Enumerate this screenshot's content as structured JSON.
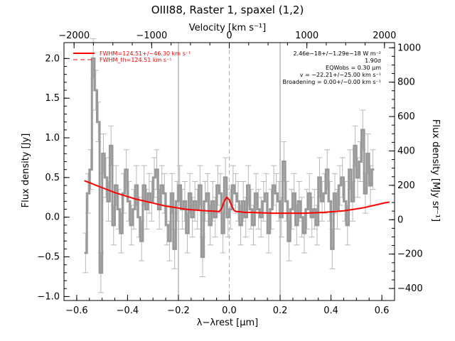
{
  "chart_data": {
    "type": "line",
    "title": "OIII88, Raster 1, spaxel (1,2)",
    "xlabel": "λ−λrest [μm]",
    "ylabel": "Flux density [Jy]",
    "x2label": "Velocity [km s⁻¹]",
    "y2label": "Flux density [MJy sr⁻¹]",
    "xlim": [
      -0.65,
      0.65
    ],
    "ylim": [
      -1.05,
      2.2
    ],
    "x2lim": [
      -2130,
      2130
    ],
    "y2lim": [
      -470,
      1030
    ],
    "xticks": [
      "−0.6",
      "−0.4",
      "−0.2",
      "0.0",
      "0.2",
      "0.4",
      "0.6"
    ],
    "yticks": [
      "−1.0",
      "−0.5",
      "0.0",
      "0.5",
      "1.0",
      "1.5",
      "2.0"
    ],
    "x2ticks": [
      "−2000",
      "−1000",
      "0",
      "1000",
      "2000"
    ],
    "y2ticks": [
      "−400",
      "−200",
      "0",
      "200",
      "400",
      "600",
      "800",
      "1000"
    ],
    "vlines": [
      -0.2,
      0.2
    ],
    "center_line": 0.0,
    "grid": false,
    "legend": {
      "position": "top-left",
      "entries": [
        {
          "label": "FWHM=124.51+/−46.30 km s⁻¹",
          "style": "solid",
          "color": "#ff0000"
        },
        {
          "label": "FWHM_th=124.51 km s⁻¹",
          "style": "dashed",
          "color": "#ff0000"
        }
      ]
    },
    "annotations": [
      "2.46e−18+/−1.29e−18 W m⁻²",
      "1.90σ",
      "EQWobs = 0.30 μm",
      "v = −22.21+/−25.00 km s⁻¹",
      "Broadening = 0.00+/−0.00 km s⁻¹"
    ],
    "series": [
      {
        "style": "steps-with-errorbars",
        "color": "#999999",
        "x": [
          -0.565,
          -0.555,
          -0.545,
          -0.535,
          -0.525,
          -0.515,
          -0.505,
          -0.495,
          -0.485,
          -0.475,
          -0.465,
          -0.455,
          -0.445,
          -0.435,
          -0.425,
          -0.415,
          -0.405,
          -0.395,
          -0.385,
          -0.375,
          -0.365,
          -0.355,
          -0.345,
          -0.335,
          -0.325,
          -0.315,
          -0.305,
          -0.295,
          -0.285,
          -0.275,
          -0.265,
          -0.255,
          -0.245,
          -0.235,
          -0.225,
          -0.215,
          -0.205,
          -0.195,
          -0.185,
          -0.175,
          -0.165,
          -0.155,
          -0.145,
          -0.135,
          -0.125,
          -0.115,
          -0.105,
          -0.095,
          -0.085,
          -0.075,
          -0.065,
          -0.055,
          -0.045,
          -0.035,
          -0.025,
          -0.015,
          -0.005,
          0.005,
          0.015,
          0.025,
          0.035,
          0.045,
          0.055,
          0.065,
          0.075,
          0.085,
          0.095,
          0.105,
          0.115,
          0.125,
          0.135,
          0.145,
          0.155,
          0.165,
          0.175,
          0.185,
          0.195,
          0.205,
          0.215,
          0.225,
          0.235,
          0.245,
          0.255,
          0.265,
          0.275,
          0.285,
          0.295,
          0.305,
          0.315,
          0.325,
          0.335,
          0.345,
          0.355,
          0.365,
          0.375,
          0.385,
          0.395,
          0.405,
          0.415,
          0.425,
          0.435,
          0.445,
          0.455,
          0.465,
          0.475,
          0.485,
          0.495,
          0.505,
          0.515,
          0.525,
          0.535,
          0.545,
          0.555,
          0.565
        ],
        "y": [
          -0.45,
          0.3,
          0.6,
          2.0,
          1.6,
          1.2,
          -0.7,
          0.8,
          0.5,
          0.2,
          0.9,
          -0.1,
          0.4,
          0.1,
          -0.2,
          0.3,
          0.6,
          0.2,
          -0.1,
          0.1,
          0.4,
          0.0,
          -0.3,
          0.4,
          0.1,
          0.3,
          0.2,
          0.5,
          0.6,
          0.1,
          0.4,
          0.3,
          -0.1,
          -0.3,
          0.3,
          -0.4,
          0.2,
          0.4,
          0.1,
          0.2,
          -0.2,
          0.3,
          0.0,
          0.2,
          0.1,
          0.4,
          -0.5,
          0.2,
          0.3,
          -0.1,
          0.2,
          0.0,
          0.4,
          0.3,
          -0.2,
          0.5,
          0.0,
          0.1,
          0.4,
          0.3,
          0.2,
          -0.1,
          0.2,
          0.0,
          0.4,
          0.1,
          -0.1,
          0.3,
          0.1,
          0.0,
          0.2,
          0.3,
          -0.2,
          0.1,
          0.4,
          0.3,
          0.2,
          0.0,
          0.7,
          0.2,
          -0.3,
          0.1,
          0.3,
          -0.1,
          0.2,
          0.0,
          -0.2,
          0.1,
          0.3,
          0.0,
          0.1,
          -0.1,
          0.5,
          0.2,
          0.3,
          0.6,
          0.2,
          -0.4,
          0.3,
          0.1,
          0.4,
          0.5,
          0.2,
          -0.1,
          0.6,
          0.2,
          0.9,
          0.5,
          0.7,
          1.1,
          0.3,
          0.8,
          0.4,
          0.6
        ],
        "yerr": 0.25
      },
      {
        "style": "solid",
        "color": "#ff0000",
        "x": [
          -0.57,
          -0.53,
          -0.49,
          -0.45,
          -0.41,
          -0.37,
          -0.33,
          -0.29,
          -0.25,
          -0.21,
          -0.17,
          -0.13,
          -0.09,
          -0.06,
          -0.04,
          -0.03,
          -0.02,
          -0.01,
          0.0,
          0.01,
          0.02,
          0.03,
          0.04,
          0.06,
          0.09,
          0.13,
          0.17,
          0.21,
          0.25,
          0.29,
          0.33,
          0.37,
          0.41,
          0.45,
          0.49,
          0.53,
          0.57,
          0.61,
          0.63
        ],
        "y": [
          0.46,
          0.41,
          0.36,
          0.31,
          0.27,
          0.23,
          0.2,
          0.17,
          0.14,
          0.12,
          0.1,
          0.09,
          0.08,
          0.075,
          0.07,
          0.11,
          0.2,
          0.25,
          0.22,
          0.14,
          0.08,
          0.07,
          0.07,
          0.06,
          0.06,
          0.055,
          0.05,
          0.05,
          0.05,
          0.05,
          0.055,
          0.06,
          0.07,
          0.08,
          0.1,
          0.12,
          0.15,
          0.18,
          0.19
        ]
      }
    ]
  }
}
